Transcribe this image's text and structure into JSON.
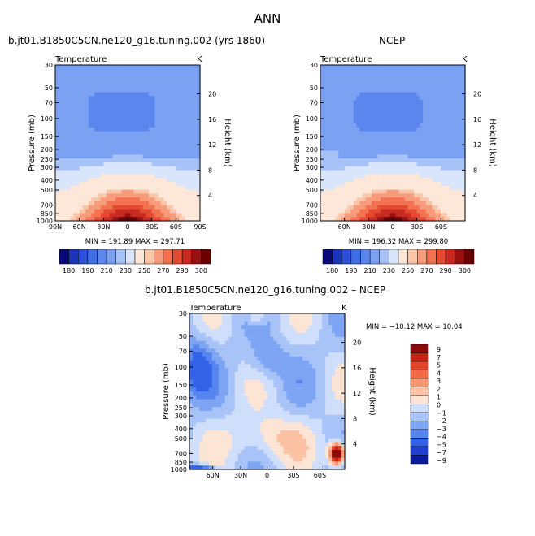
{
  "title": "ANN",
  "colors": {
    "abs_scale": [
      "#08087a",
      "#1a33b8",
      "#2b4fd6",
      "#3f6ee6",
      "#5b86ee",
      "#7ba1f3",
      "#a6c2f7",
      "#d8e5fb",
      "#fde7d9",
      "#fbc5a7",
      "#f79b7a",
      "#f27252",
      "#e44a32",
      "#c72a1e",
      "#9a0f10",
      "#6a0000"
    ],
    "diff_scale": [
      "#0a1a9c",
      "#1e3fd1",
      "#3462e6",
      "#5685ef",
      "#7ea5f4",
      "#a8c3f8",
      "#cfdefb",
      "#fde5d6",
      "#fbc1a2",
      "#f7956f",
      "#f06a44",
      "#e04429",
      "#c22414",
      "#8b0a0a"
    ]
  },
  "chart_data": [
    {
      "type": "heatmap",
      "name": "model",
      "header": "b.jt01.B1850C5CN.ne120_g16.tuning.002 (yrs 1860)",
      "variable": "Temperature",
      "units": "K",
      "x_ticks": [
        "90N",
        "60N",
        "30N",
        "0",
        "30S",
        "60S",
        "90S"
      ],
      "y_ticks": [
        "30",
        "50",
        "70",
        "100",
        "150",
        "200",
        "250",
        "300",
        "400",
        "500",
        "700",
        "850",
        "1000"
      ],
      "ylabel": "Pressure (mb)",
      "y2label": "Height (km)",
      "y2_ticks": [
        "20",
        "16",
        "12",
        "8",
        "4"
      ],
      "min": "191.89",
      "max": "297.71",
      "stats_text": "MIN = 191.89   MAX = 297.71",
      "colorbar_labels": [
        "180",
        "190",
        "210",
        "230",
        "250",
        "270",
        "290",
        "300"
      ]
    },
    {
      "type": "heatmap",
      "name": "obs",
      "header": "NCEP",
      "variable": "Temperature",
      "units": "K",
      "x_ticks": [
        "60N",
        "30N",
        "0",
        "30S",
        "60S"
      ],
      "y_ticks": [
        "30",
        "50",
        "70",
        "100",
        "150",
        "200",
        "250",
        "300",
        "400",
        "500",
        "700",
        "850",
        "1000"
      ],
      "ylabel": "Pressure (mb)",
      "y2label": "Height (km)",
      "y2_ticks": [
        "20",
        "16",
        "12",
        "8",
        "4"
      ],
      "min": "196.32",
      "max": "299.80",
      "stats_text": "MIN = 196.32   MAX = 299.80",
      "colorbar_labels": [
        "180",
        "190",
        "210",
        "230",
        "250",
        "270",
        "290",
        "300"
      ]
    },
    {
      "type": "heatmap",
      "name": "diff",
      "header": "b.jt01.B1850C5CN.ne120_g16.tuning.002 – NCEP",
      "variable": "Temperature",
      "units": "K",
      "x_ticks": [
        "60N",
        "30N",
        "0",
        "30S",
        "60S"
      ],
      "y_ticks": [
        "30",
        "50",
        "70",
        "100",
        "150",
        "200",
        "250",
        "300",
        "400",
        "500",
        "700",
        "850",
        "1000"
      ],
      "ylabel": "Pressure (mb)",
      "y2label": "Height (km)",
      "y2_ticks": [
        "20",
        "16",
        "12",
        "8",
        "4"
      ],
      "min": "-10.12",
      "max": "10.04",
      "stats_text": "MIN = −10.12   MAX =  10.04",
      "colorbar_labels": [
        "9",
        "7",
        "5",
        "4",
        "3",
        "2",
        "1",
        "0",
        "−1",
        "−2",
        "−3",
        "−4",
        "−5",
        "−7",
        "−9"
      ]
    }
  ]
}
